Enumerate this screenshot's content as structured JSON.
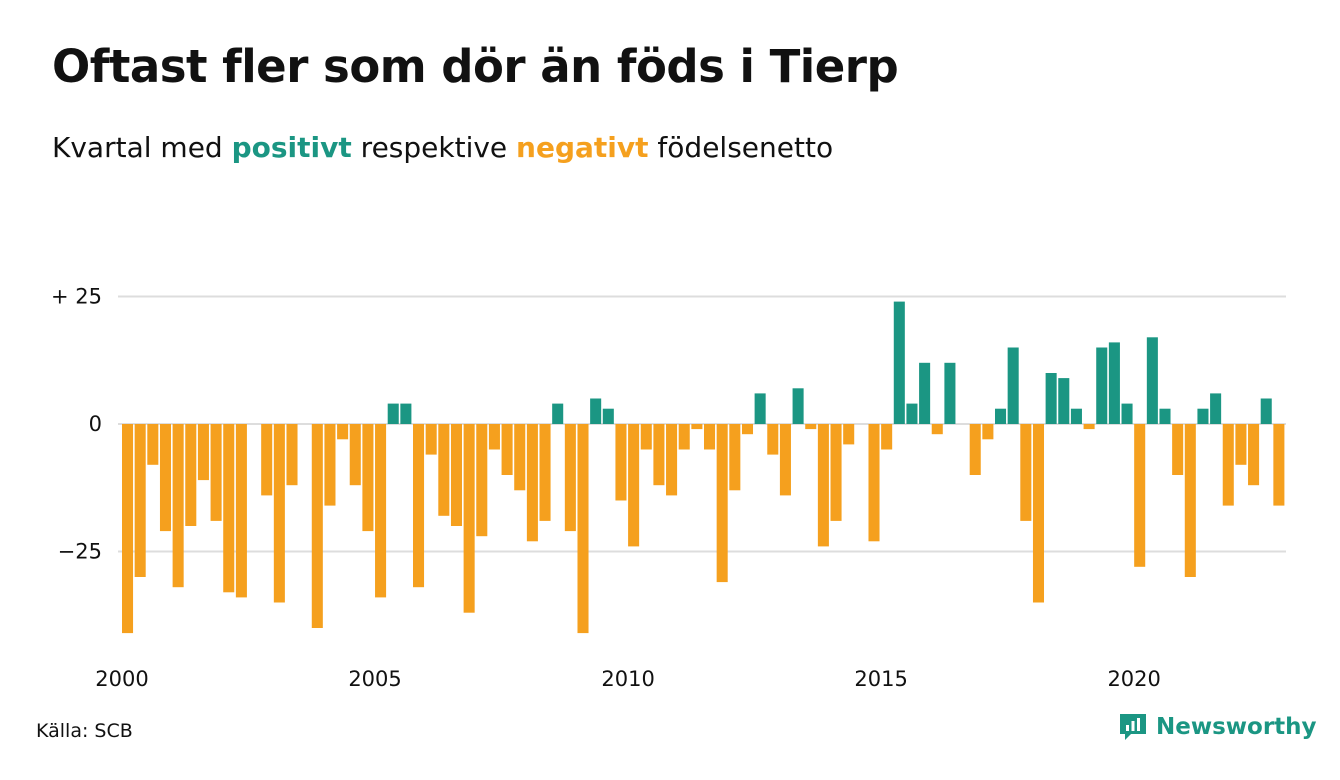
{
  "title": "Oftast fler som dör än föds i Tierp",
  "subtitle": {
    "prefix": "Kvartal med ",
    "positive_word": "positivt",
    "middle": " respektive ",
    "negative_word": "negativt",
    "suffix": " födelsenetto"
  },
  "colors": {
    "positive": "#1b9683",
    "negative": "#f5a01e",
    "grid": "#dddddd",
    "text": "#111111"
  },
  "source": "Källa: SCB",
  "brand": {
    "name": "Newsworthy",
    "icon": "newsworthy-logo-icon"
  },
  "chart_data": {
    "type": "bar",
    "title": "Oftast fler som dör än föds i Tierp",
    "subtitle": "Kvartal med positivt respektive negativt födelsenetto",
    "x_start_year": 2000,
    "periods_per_year": 4,
    "x_tick_labels": [
      "2000",
      "2005",
      "2010",
      "2015",
      "2020"
    ],
    "y_ticks": [
      {
        "value": 25,
        "label": "+ 25"
      },
      {
        "value": 0,
        "label": "0"
      },
      {
        "value": -25,
        "label": "−25"
      }
    ],
    "ylim": [
      -41,
      25
    ],
    "grid": true,
    "values": [
      -41,
      -30,
      -8,
      -21,
      -32,
      -20,
      -11,
      -19,
      -33,
      -34,
      0,
      -14,
      -35,
      -12,
      0,
      -40,
      -16,
      -3,
      -12,
      -21,
      -34,
      4,
      4,
      -32,
      -6,
      -18,
      -20,
      -37,
      -22,
      -5,
      -10,
      -13,
      -23,
      -19,
      4,
      -21,
      -41,
      5,
      3,
      -15,
      -24,
      -5,
      -12,
      -14,
      -5,
      -1,
      -5,
      -31,
      -13,
      -2,
      6,
      -6,
      -14,
      7,
      -1,
      -24,
      -19,
      -4,
      0,
      -23,
      -5,
      24,
      4,
      12,
      -2,
      12,
      0,
      -10,
      -3,
      3,
      15,
      -19,
      -35,
      10,
      9,
      3,
      -1,
      15,
      16,
      4,
      -28,
      17,
      3,
      -10,
      -30,
      3,
      6,
      -16,
      -8,
      -12,
      5,
      -16
    ]
  }
}
